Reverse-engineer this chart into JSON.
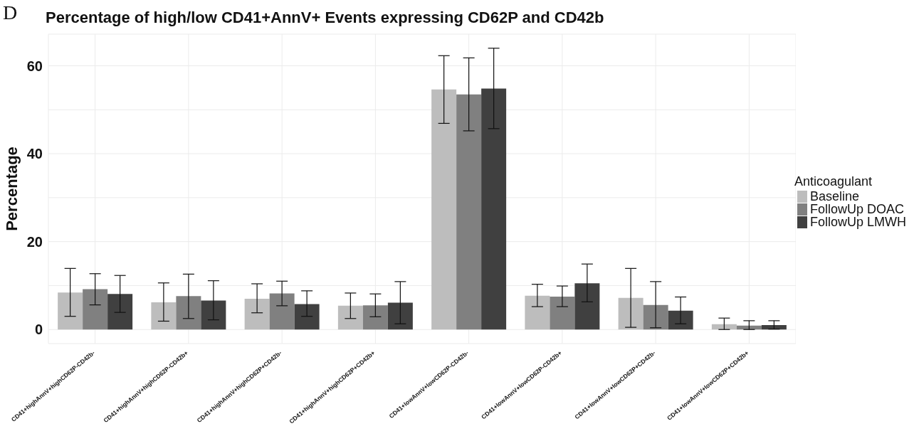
{
  "chart_data": {
    "type": "bar",
    "title": "Percentage of high/low CD41+AnnV+ Events expressing CD62P and CD42b",
    "annotations": [
      "D"
    ],
    "ylabel": "Percentage",
    "legend_title": "Anticoagulant",
    "legend": "right",
    "grid": true,
    "categories": [
      "CD41+highAnnV+highCD62P-CD42b-",
      "CD41+highAnnV+highCD62P-CD42b+",
      "CD41+highAnnV+highCD62P+CD42b-",
      "CD41+highAnnV+highCD62P+CD42b+",
      "CD41+lowAnnV+lowCD62P-CD42b-",
      "CD41+lowAnnV+lowCD62P-CD42b+",
      "CD41+lowAnnV+lowCD62P+CD42b-",
      "CD41+lowAnnV+lowCD62P+CD42b+"
    ],
    "ylim": [
      -3.2,
      67.2
    ],
    "yticks": [
      0,
      {
        "value": 10,
        "label": null
      },
      20,
      {
        "value": 30,
        "label": null
      },
      40,
      {
        "value": 50,
        "label": null
      },
      60
    ],
    "series": [
      {
        "name": "Baseline",
        "color": "#bdbdbd",
        "values": [
          8.4,
          6.2,
          7.0,
          5.4,
          54.6,
          7.7,
          7.2,
          1.2
        ],
        "errors": [
          [
            3.0,
            13.9
          ],
          [
            1.9,
            10.6
          ],
          [
            3.8,
            10.4
          ],
          [
            2.5,
            8.3
          ],
          [
            46.9,
            62.3
          ],
          [
            5.2,
            10.3
          ],
          [
            0.5,
            13.9
          ],
          [
            0.0,
            2.6
          ]
        ]
      },
      {
        "name": "FollowUp DOAC",
        "color": "#808080",
        "values": [
          9.2,
          7.6,
          8.2,
          5.5,
          53.5,
          7.5,
          5.6,
          0.9
        ],
        "errors": [
          [
            5.6,
            12.7
          ],
          [
            2.5,
            12.6
          ],
          [
            5.4,
            11.0
          ],
          [
            2.9,
            8.1
          ],
          [
            45.2,
            61.8
          ],
          [
            5.2,
            9.9
          ],
          [
            0.4,
            10.9
          ],
          [
            0.0,
            2.0
          ]
        ]
      },
      {
        "name": "FollowUp LMWH",
        "color": "#404040",
        "values": [
          8.1,
          6.6,
          5.8,
          6.1,
          54.8,
          10.5,
          4.3,
          1.0
        ],
        "errors": [
          [
            3.9,
            12.3
          ],
          [
            2.2,
            11.1
          ],
          [
            3.0,
            8.8
          ],
          [
            1.3,
            10.9
          ],
          [
            45.7,
            64.0
          ],
          [
            6.3,
            14.9
          ],
          [
            1.3,
            7.4
          ],
          [
            0.1,
            2.0
          ]
        ]
      }
    ]
  }
}
